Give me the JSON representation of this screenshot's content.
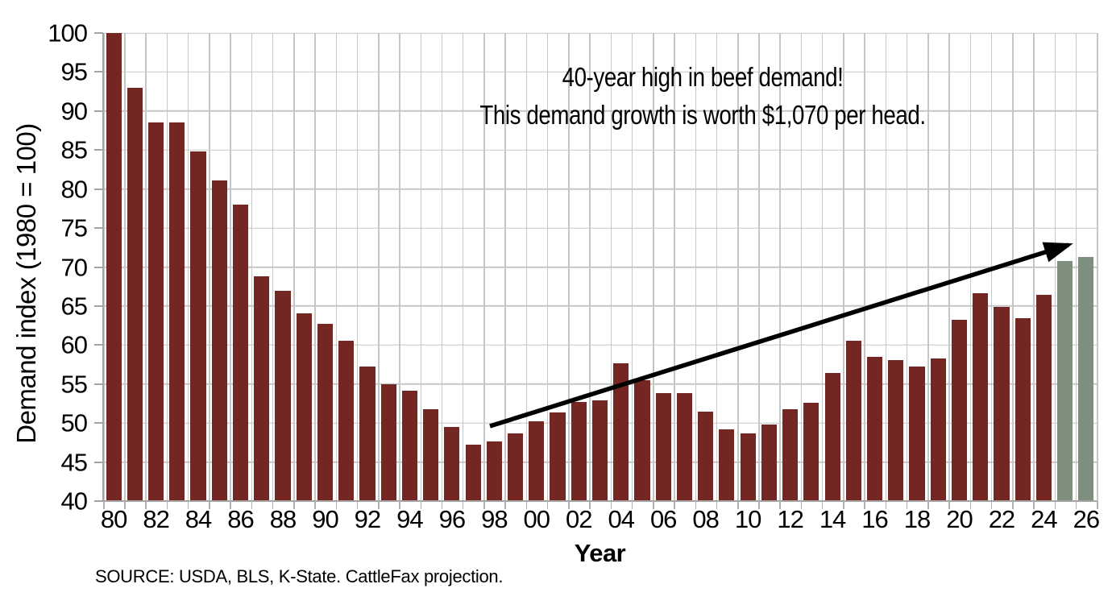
{
  "annotation": {
    "line1": "40-year high in beef demand!",
    "line2": "This demand growth is worth $1,070 per head."
  },
  "source": "SOURCE: USDA, BLS, K-State. CattleFax projection.",
  "chart_data": {
    "type": "bar",
    "title": "",
    "xlabel": "Year",
    "ylabel": "Demand index (1980 = 100)",
    "ylim": [
      40,
      100
    ],
    "grid": "both",
    "legend": "none",
    "bar_color": "#732622",
    "projected_bar_color": "#7E907D",
    "y_ticks": [
      100,
      95,
      90,
      85,
      80,
      75,
      70,
      65,
      60,
      55,
      50,
      45,
      40
    ],
    "x_ticks": [
      {
        "label": "80",
        "slot": 0
      },
      {
        "label": "82",
        "slot": 2
      },
      {
        "label": "84",
        "slot": 4
      },
      {
        "label": "86",
        "slot": 6
      },
      {
        "label": "88",
        "slot": 8
      },
      {
        "label": "90",
        "slot": 10
      },
      {
        "label": "92",
        "slot": 12
      },
      {
        "label": "94",
        "slot": 14
      },
      {
        "label": "96",
        "slot": 16
      },
      {
        "label": "98",
        "slot": 18
      },
      {
        "label": "00",
        "slot": 20
      },
      {
        "label": "02",
        "slot": 22
      },
      {
        "label": "04",
        "slot": 24
      },
      {
        "label": "06",
        "slot": 26
      },
      {
        "label": "08",
        "slot": 28
      },
      {
        "label": "10",
        "slot": 30
      },
      {
        "label": "12",
        "slot": 32
      },
      {
        "label": "14",
        "slot": 34
      },
      {
        "label": "16",
        "slot": 36
      },
      {
        "label": "18",
        "slot": 38
      },
      {
        "label": "20",
        "slot": 40
      },
      {
        "label": "22",
        "slot": 42
      },
      {
        "label": "24",
        "slot": 44
      },
      {
        "label": "26",
        "slot": 46
      }
    ],
    "points": [
      {
        "year": 1980,
        "value": 100.0
      },
      {
        "year": 1981,
        "value": 93.0
      },
      {
        "year": 1982,
        "value": 88.5
      },
      {
        "year": 1983,
        "value": 88.5
      },
      {
        "year": 1984,
        "value": 84.8
      },
      {
        "year": 1985,
        "value": 81.1
      },
      {
        "year": 1986,
        "value": 78.0
      },
      {
        "year": 1987,
        "value": 68.8
      },
      {
        "year": 1988,
        "value": 67.0
      },
      {
        "year": 1989,
        "value": 64.1
      },
      {
        "year": 1990,
        "value": 62.7
      },
      {
        "year": 1991,
        "value": 60.6
      },
      {
        "year": 1992,
        "value": 57.2
      },
      {
        "year": 1993,
        "value": 55.0
      },
      {
        "year": 1994,
        "value": 54.1
      },
      {
        "year": 1995,
        "value": 51.8
      },
      {
        "year": 1996,
        "value": 49.5
      },
      {
        "year": 1997,
        "value": 47.2
      },
      {
        "year": 1998,
        "value": 47.6
      },
      {
        "year": 1999,
        "value": 48.7
      },
      {
        "year": 2000,
        "value": 50.2
      },
      {
        "year": 2001,
        "value": 51.4
      },
      {
        "year": 2002,
        "value": 52.7
      },
      {
        "year": 2003,
        "value": 52.9
      },
      {
        "year": 2004,
        "value": 57.7
      },
      {
        "year": 2005,
        "value": 55.5
      },
      {
        "year": 2006,
        "value": 53.8
      },
      {
        "year": 2007,
        "value": 53.8
      },
      {
        "year": 2008,
        "value": 51.5
      },
      {
        "year": 2009,
        "value": 49.2
      },
      {
        "year": 2010,
        "value": 48.7
      },
      {
        "year": 2011,
        "value": 49.8
      },
      {
        "year": 2012,
        "value": 51.8
      },
      {
        "year": 2013,
        "value": 52.6
      },
      {
        "year": 2014,
        "value": 56.4
      },
      {
        "year": 2015,
        "value": 60.6
      },
      {
        "year": 2016,
        "value": 58.5
      },
      {
        "year": 2017,
        "value": 58.1
      },
      {
        "year": 2018,
        "value": 57.2
      },
      {
        "year": 2019,
        "value": 58.3
      },
      {
        "year": 2020,
        "value": 63.2
      },
      {
        "year": 2021,
        "value": 66.6
      },
      {
        "year": 2022,
        "value": 64.9
      },
      {
        "year": 2023,
        "value": 63.4
      },
      {
        "year": 2024,
        "value": 66.4
      },
      {
        "year": 2025,
        "value": 70.8,
        "projected": true
      },
      {
        "year": 2026,
        "value": 71.3,
        "projected": true
      }
    ]
  }
}
